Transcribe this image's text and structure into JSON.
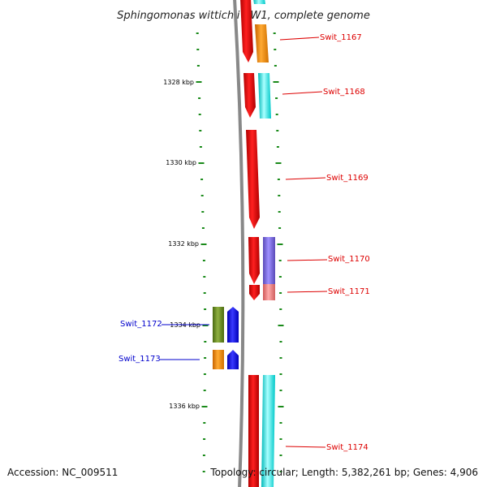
{
  "title": "Sphingomonas wittichii RW1, complete genome",
  "footer": {
    "accession": "Accession: NC_009511",
    "topology": "Topology: circular; Length: 5,382,261 bp; Genes: 4,906"
  },
  "ruler": {
    "major_labels": [
      "1328 kbp",
      "1330 kbp",
      "1332 kbp",
      "1334 kbp",
      "1336 kbp"
    ],
    "tick_color": "#1a8a1a"
  },
  "genes": [
    {
      "label": "Swit_1167",
      "strand": "forward",
      "label_color": "#dd0000"
    },
    {
      "label": "Swit_1168",
      "strand": "forward",
      "label_color": "#dd0000"
    },
    {
      "label": "Swit_1169",
      "strand": "forward",
      "label_color": "#dd0000"
    },
    {
      "label": "Swit_1170",
      "strand": "forward",
      "label_color": "#dd0000"
    },
    {
      "label": "Swit_1171",
      "strand": "forward",
      "label_color": "#dd0000"
    },
    {
      "label": "Swit_1172",
      "strand": "reverse",
      "label_color": "#0000cc"
    },
    {
      "label": "Swit_1173",
      "strand": "reverse",
      "label_color": "#0000cc"
    },
    {
      "label": "Swit_1174",
      "strand": "forward",
      "label_color": "#dd0000"
    }
  ],
  "colors": {
    "backbone": "#888888",
    "cds": "#ff0000",
    "cog_orange": "#ff8c00",
    "cog_cyan": "#00ffff",
    "cog_purple": "#7b68ee",
    "cog_pink": "#f08080",
    "cog_olive": "#6b8e23",
    "cog_blue": "#0000ff"
  }
}
